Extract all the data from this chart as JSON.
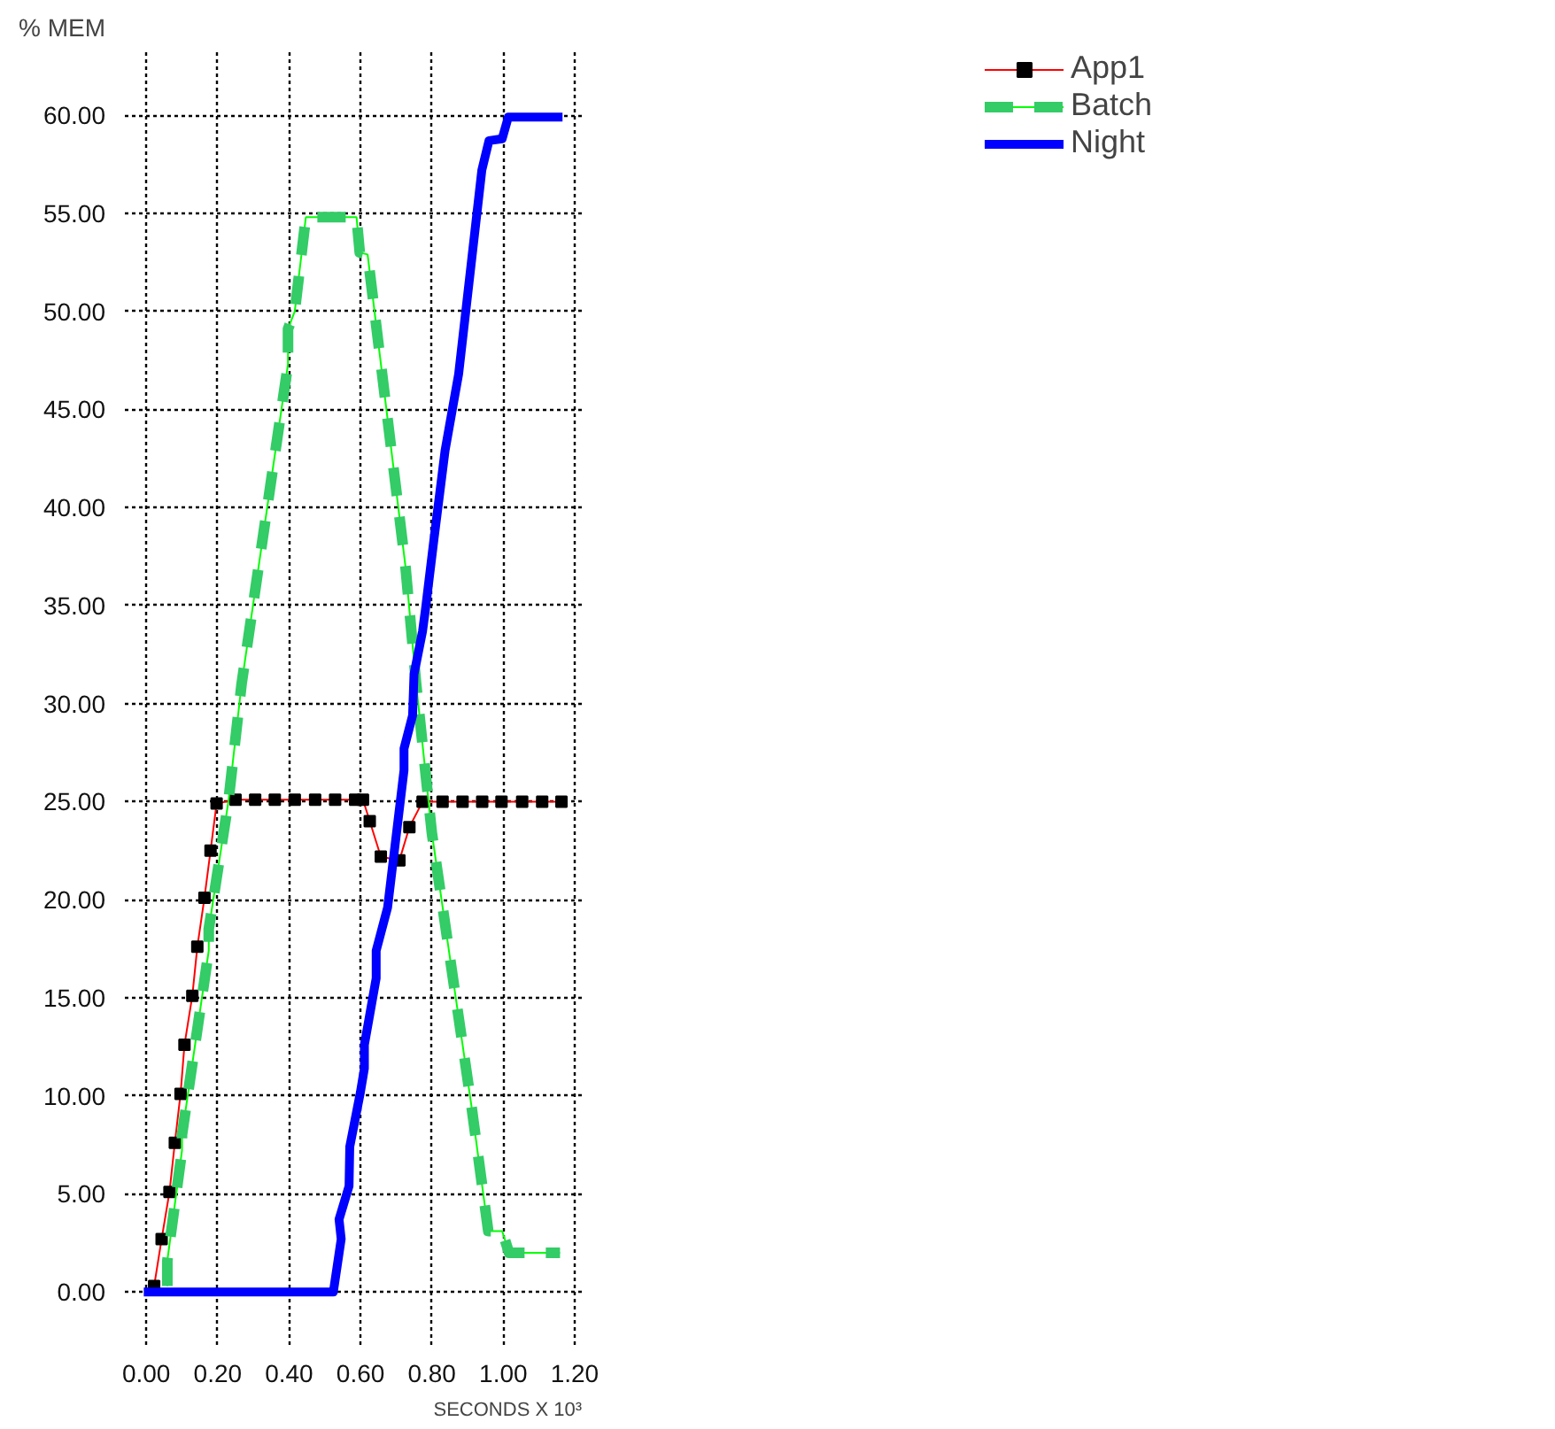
{
  "chart_data": {
    "type": "line",
    "ylabel": "% MEM",
    "xlabel": "SECONDS X 10³",
    "xlim": [
      -0.06,
      1.22
    ],
    "ylim": [
      -2.7,
      63.3
    ],
    "xticks": [
      {
        "value": 0,
        "label": "0.00"
      },
      {
        "value": 0.2,
        "label": "0.20"
      },
      {
        "value": 0.4,
        "label": "0.40"
      },
      {
        "value": 0.6,
        "label": "0.60"
      },
      {
        "value": 0.8,
        "label": "0.80"
      },
      {
        "value": 1.0,
        "label": "1.00"
      },
      {
        "value": 1.2,
        "label": "1.20"
      }
    ],
    "yticks": [
      {
        "value": 0,
        "label": "0.00"
      },
      {
        "value": 5,
        "label": "5.00"
      },
      {
        "value": 10,
        "label": "10.00"
      },
      {
        "value": 15,
        "label": "15.00"
      },
      {
        "value": 20,
        "label": "20.00"
      },
      {
        "value": 25,
        "label": "25.00"
      },
      {
        "value": 30,
        "label": "30.00"
      },
      {
        "value": 35,
        "label": "35.00"
      },
      {
        "value": 40,
        "label": "40.00"
      },
      {
        "value": 45,
        "label": "45.00"
      },
      {
        "value": 50,
        "label": "50.00"
      },
      {
        "value": 55,
        "label": "55.00"
      },
      {
        "value": 60,
        "label": "60.00"
      }
    ],
    "grid": true,
    "legend": "top right",
    "series": [
      {
        "name": "App1",
        "color": "#ff0000",
        "marker": "square",
        "line_style": "solid",
        "x": [
          0.022,
          0.043,
          0.065,
          0.08,
          0.096,
          0.107,
          0.129,
          0.143,
          0.163,
          0.18,
          0.197,
          0.25,
          0.305,
          0.36,
          0.416,
          0.473,
          0.529,
          0.585,
          0.607,
          0.626,
          0.657,
          0.709,
          0.737,
          0.774,
          0.83,
          0.886,
          0.941,
          0.995,
          1.053,
          1.109,
          1.163
        ],
        "values": [
          0.3,
          2.7,
          5.1,
          7.6,
          10.1,
          12.6,
          15.1,
          17.6,
          20.1,
          22.5,
          24.9,
          25.1,
          25.1,
          25.1,
          25.1,
          25.1,
          25.1,
          25.1,
          25.1,
          24.0,
          22.2,
          22.0,
          23.7,
          25.0,
          25.0,
          25.0,
          25.0,
          25.0,
          25.0,
          25.0,
          25.0
        ]
      },
      {
        "name": "Batch",
        "color": "#33cc66",
        "marker": "none",
        "line_style": "dashed",
        "x": [
          0.059,
          0.059,
          0.1,
          0.1,
          0.175,
          0.175,
          0.23,
          0.267,
          0.397,
          0.397,
          0.416,
          0.447,
          0.589,
          0.598,
          0.62,
          0.726,
          0.756,
          0.8,
          0.91,
          0.958,
          0.997,
          1.016,
          1.159
        ],
        "values": [
          0.3,
          1.6,
          7.2,
          8.0,
          17.4,
          18.5,
          25.0,
          31.0,
          47.3,
          49.1,
          50.0,
          54.8,
          54.8,
          53.0,
          52.9,
          37.0,
          31.0,
          23.4,
          9.6,
          3.1,
          3.1,
          2.0,
          2.0
        ]
      },
      {
        "name": "Night",
        "color": "#0000ff",
        "marker": "none",
        "line_style": "solid",
        "x": [
          -0.007,
          0.524,
          0.546,
          0.54,
          0.568,
          0.57,
          0.6,
          0.611,
          0.611,
          0.644,
          0.644,
          0.676,
          0.722,
          0.722,
          0.746,
          0.75,
          0.774,
          0.782,
          0.806,
          0.837,
          0.875,
          0.94,
          0.96,
          0.997,
          1.014,
          1.166
        ],
        "values": [
          0,
          0,
          2.7,
          3.7,
          5.4,
          7.4,
          10.2,
          11.4,
          12.6,
          16.0,
          17.4,
          19.6,
          26.6,
          27.7,
          29.4,
          31.5,
          33.7,
          34.8,
          38.4,
          42.9,
          46.8,
          57.2,
          58.7,
          58.8,
          59.9,
          59.9
        ]
      }
    ]
  }
}
